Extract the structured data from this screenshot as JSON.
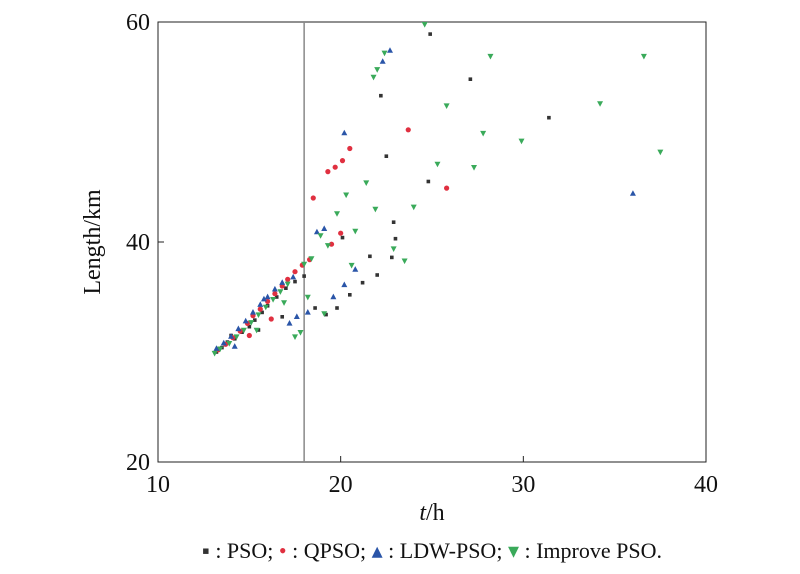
{
  "chart_data": {
    "type": "scatter",
    "xlabel_italic": "t",
    "xlabel_unit": "/h",
    "ylabel": "Length/km",
    "xlim": [
      10,
      40
    ],
    "ylim": [
      20,
      60
    ],
    "x_ticks": [
      "10",
      "20",
      "30",
      "40"
    ],
    "y_ticks": [
      "20",
      "40",
      "60"
    ],
    "reference_line_x": 18,
    "grid": false,
    "legend_position": "bottom",
    "series": [
      {
        "name": "PSO",
        "marker": "square",
        "color": "#333333",
        "points": [
          [
            13.2,
            30.0
          ],
          [
            13.5,
            30.4
          ],
          [
            13.8,
            30.9
          ],
          [
            14.2,
            31.2
          ],
          [
            14.6,
            31.8
          ],
          [
            15.0,
            32.3
          ],
          [
            15.3,
            32.9
          ],
          [
            15.7,
            33.6
          ],
          [
            16.0,
            34.2
          ],
          [
            16.5,
            35.0
          ],
          [
            17.0,
            35.8
          ],
          [
            17.5,
            36.4
          ],
          [
            18.0,
            36.9
          ],
          [
            18.6,
            34.0
          ],
          [
            19.2,
            33.4
          ],
          [
            19.8,
            34.0
          ],
          [
            20.5,
            35.2
          ],
          [
            21.2,
            36.3
          ],
          [
            22.0,
            37.0
          ],
          [
            22.8,
            38.6
          ],
          [
            23.0,
            40.3
          ],
          [
            22.5,
            47.8
          ],
          [
            22.2,
            53.3
          ],
          [
            24.8,
            45.5
          ],
          [
            24.9,
            58.9
          ],
          [
            27.1,
            54.8
          ],
          [
            31.4,
            51.3
          ],
          [
            14.0,
            31.5
          ],
          [
            15.5,
            32.0
          ],
          [
            16.8,
            33.2
          ],
          [
            20.1,
            40.4
          ],
          [
            21.6,
            38.7
          ],
          [
            22.9,
            41.8
          ]
        ]
      },
      {
        "name": "QPSO",
        "marker": "circle",
        "color": "#e03040",
        "points": [
          [
            13.3,
            30.2
          ],
          [
            13.7,
            30.7
          ],
          [
            14.1,
            31.3
          ],
          [
            14.5,
            31.9
          ],
          [
            14.9,
            32.6
          ],
          [
            15.2,
            33.3
          ],
          [
            15.6,
            33.9
          ],
          [
            16.0,
            34.6
          ],
          [
            16.4,
            35.3
          ],
          [
            16.8,
            36.0
          ],
          [
            17.1,
            36.6
          ],
          [
            17.5,
            37.3
          ],
          [
            17.9,
            37.9
          ],
          [
            18.3,
            38.4
          ],
          [
            18.5,
            44.0
          ],
          [
            19.3,
            46.4
          ],
          [
            19.7,
            46.8
          ],
          [
            20.1,
            47.4
          ],
          [
            20.5,
            48.5
          ],
          [
            23.7,
            50.2
          ],
          [
            25.8,
            44.9
          ],
          [
            20.0,
            40.8
          ],
          [
            19.5,
            39.8
          ],
          [
            15.0,
            31.5
          ],
          [
            16.2,
            33.0
          ]
        ]
      },
      {
        "name": "LDW-PSO",
        "marker": "triangle-up",
        "color": "#2a55a8",
        "points": [
          [
            13.2,
            30.3
          ],
          [
            13.6,
            30.8
          ],
          [
            14.0,
            31.4
          ],
          [
            14.4,
            32.1
          ],
          [
            14.8,
            32.8
          ],
          [
            15.2,
            33.6
          ],
          [
            15.6,
            34.3
          ],
          [
            16.0,
            35.0
          ],
          [
            16.4,
            35.7
          ],
          [
            16.8,
            36.3
          ],
          [
            17.2,
            32.6
          ],
          [
            17.6,
            33.2
          ],
          [
            18.2,
            33.6
          ],
          [
            18.7,
            40.9
          ],
          [
            19.1,
            41.2
          ],
          [
            19.6,
            35.0
          ],
          [
            20.2,
            36.1
          ],
          [
            20.2,
            49.9
          ],
          [
            20.8,
            37.5
          ],
          [
            22.3,
            56.4
          ],
          [
            22.7,
            57.4
          ],
          [
            36.0,
            44.4
          ],
          [
            14.2,
            30.5
          ],
          [
            15.8,
            34.8
          ],
          [
            17.4,
            36.8
          ]
        ]
      },
      {
        "name": "Improve PSO.",
        "marker": "triangle-down",
        "color": "#3aaa5a",
        "points": [
          [
            13.1,
            29.9
          ],
          [
            13.4,
            30.3
          ],
          [
            13.9,
            30.8
          ],
          [
            14.3,
            31.4
          ],
          [
            14.7,
            32.0
          ],
          [
            15.1,
            32.7
          ],
          [
            15.5,
            33.4
          ],
          [
            15.9,
            34.1
          ],
          [
            16.3,
            34.8
          ],
          [
            16.7,
            35.5
          ],
          [
            17.1,
            36.2
          ],
          [
            17.5,
            31.4
          ],
          [
            17.8,
            31.8
          ],
          [
            18.0,
            38.0
          ],
          [
            18.4,
            38.5
          ],
          [
            18.9,
            40.6
          ],
          [
            19.3,
            39.7
          ],
          [
            19.8,
            42.6
          ],
          [
            20.3,
            44.3
          ],
          [
            20.8,
            41.0
          ],
          [
            21.4,
            45.4
          ],
          [
            21.8,
            55.0
          ],
          [
            22.0,
            55.7
          ],
          [
            22.4,
            57.2
          ],
          [
            22.9,
            39.4
          ],
          [
            23.5,
            38.3
          ],
          [
            24.0,
            43.2
          ],
          [
            24.6,
            59.8
          ],
          [
            25.3,
            47.1
          ],
          [
            25.8,
            52.4
          ],
          [
            27.3,
            46.8
          ],
          [
            27.8,
            49.9
          ],
          [
            28.2,
            56.9
          ],
          [
            29.9,
            49.2
          ],
          [
            34.2,
            52.6
          ],
          [
            36.6,
            56.9
          ],
          [
            37.5,
            48.2
          ],
          [
            15.4,
            32.0
          ],
          [
            16.9,
            34.5
          ],
          [
            18.2,
            35.0
          ],
          [
            19.1,
            33.5
          ],
          [
            20.6,
            37.9
          ],
          [
            21.9,
            43.0
          ]
        ]
      }
    ]
  },
  "legend": {
    "items": [
      {
        "symbol": "▪",
        "text": ": PSO;",
        "color": "#333333"
      },
      {
        "symbol": "•",
        "text": ": QPSO;",
        "color": "#e03040"
      },
      {
        "symbol": "▴",
        "text": ": LDW-PSO;",
        "color": "#2a55a8"
      },
      {
        "symbol": "▾",
        "text": ": Improve PSO.",
        "color": "#3aaa5a"
      }
    ]
  }
}
